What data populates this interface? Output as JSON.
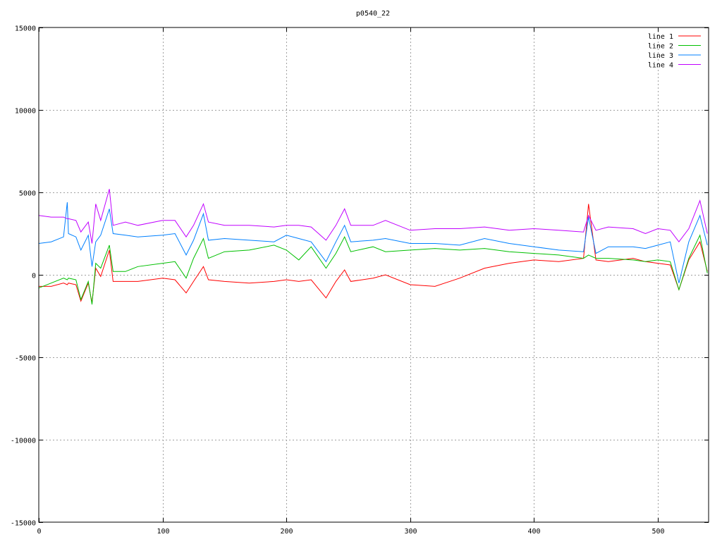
{
  "chart_data": {
    "type": "line",
    "title": "p0540_22",
    "xlabel": "",
    "ylabel": "",
    "xlim": [
      0,
      541
    ],
    "ylim": [
      -15000,
      15000
    ],
    "xticks": [
      0,
      100,
      200,
      300,
      400,
      500
    ],
    "yticks": [
      -15000,
      -10000,
      -5000,
      0,
      5000,
      10000,
      15000
    ],
    "grid": true,
    "legend_position": "top-right",
    "x": [
      0,
      10,
      20,
      23,
      24,
      30,
      34,
      40,
      43,
      46,
      50,
      57,
      60,
      70,
      80,
      100,
      110,
      119,
      125,
      133,
      137,
      150,
      170,
      190,
      200,
      210,
      220,
      232,
      240,
      247,
      252,
      270,
      280,
      300,
      320,
      340,
      360,
      380,
      400,
      420,
      440,
      444,
      450,
      460,
      480,
      490,
      500,
      510,
      517,
      525,
      534,
      540
    ],
    "series": [
      {
        "name": "line 1",
        "color": "#ff0000",
        "values": [
          -700,
          -700,
          -500,
          -600,
          -500,
          -600,
          -1600,
          -500,
          -1700,
          400,
          -100,
          1500,
          -400,
          -400,
          -400,
          -200,
          -300,
          -1100,
          -400,
          500,
          -300,
          -400,
          -500,
          -400,
          -300,
          -400,
          -300,
          -1400,
          -400,
          300,
          -400,
          -200,
          0,
          -600,
          -700,
          -200,
          400,
          700,
          900,
          800,
          1000,
          4300,
          900,
          800,
          1000,
          800,
          700,
          600,
          -900,
          900,
          2000,
          200
        ]
      },
      {
        "name": "line 2",
        "color": "#00c000",
        "values": [
          -800,
          -500,
          -200,
          -300,
          -200,
          -300,
          -1500,
          -400,
          -1800,
          700,
          400,
          1800,
          200,
          200,
          500,
          700,
          800,
          -200,
          1000,
          2200,
          1000,
          1400,
          1500,
          1800,
          1500,
          900,
          1700,
          400,
          1300,
          2300,
          1400,
          1700,
          1400,
          1500,
          1600,
          1500,
          1600,
          1400,
          1300,
          1200,
          1000,
          1200,
          1000,
          1000,
          900,
          800,
          900,
          800,
          -900,
          1000,
          2400,
          100
        ]
      },
      {
        "name": "line 3",
        "color": "#0080ff",
        "values": [
          1900,
          2000,
          2300,
          4400,
          2500,
          2300,
          1500,
          2400,
          500,
          2000,
          2400,
          4000,
          2500,
          2400,
          2300,
          2400,
          2500,
          1200,
          2100,
          3700,
          2100,
          2200,
          2100,
          2000,
          2400,
          2200,
          2000,
          800,
          2000,
          3000,
          2000,
          2100,
          2200,
          1900,
          1900,
          1800,
          2200,
          1900,
          1700,
          1500,
          1400,
          3500,
          1300,
          1700,
          1700,
          1600,
          1800,
          2000,
          -500,
          2000,
          3600,
          1800
        ]
      },
      {
        "name": "line 4",
        "color": "#c000ff",
        "values": [
          3600,
          3500,
          3500,
          3400,
          3400,
          3300,
          2600,
          3200,
          1900,
          4300,
          3300,
          5200,
          3000,
          3200,
          3000,
          3300,
          3300,
          2300,
          3000,
          4300,
          3200,
          3000,
          3000,
          2900,
          3000,
          3000,
          2900,
          2100,
          3000,
          4000,
          3000,
          3000,
          3300,
          2700,
          2800,
          2800,
          2900,
          2700,
          2800,
          2700,
          2600,
          3600,
          2700,
          2900,
          2800,
          2500,
          2800,
          2700,
          2000,
          2800,
          4500,
          2500
        ]
      }
    ]
  }
}
